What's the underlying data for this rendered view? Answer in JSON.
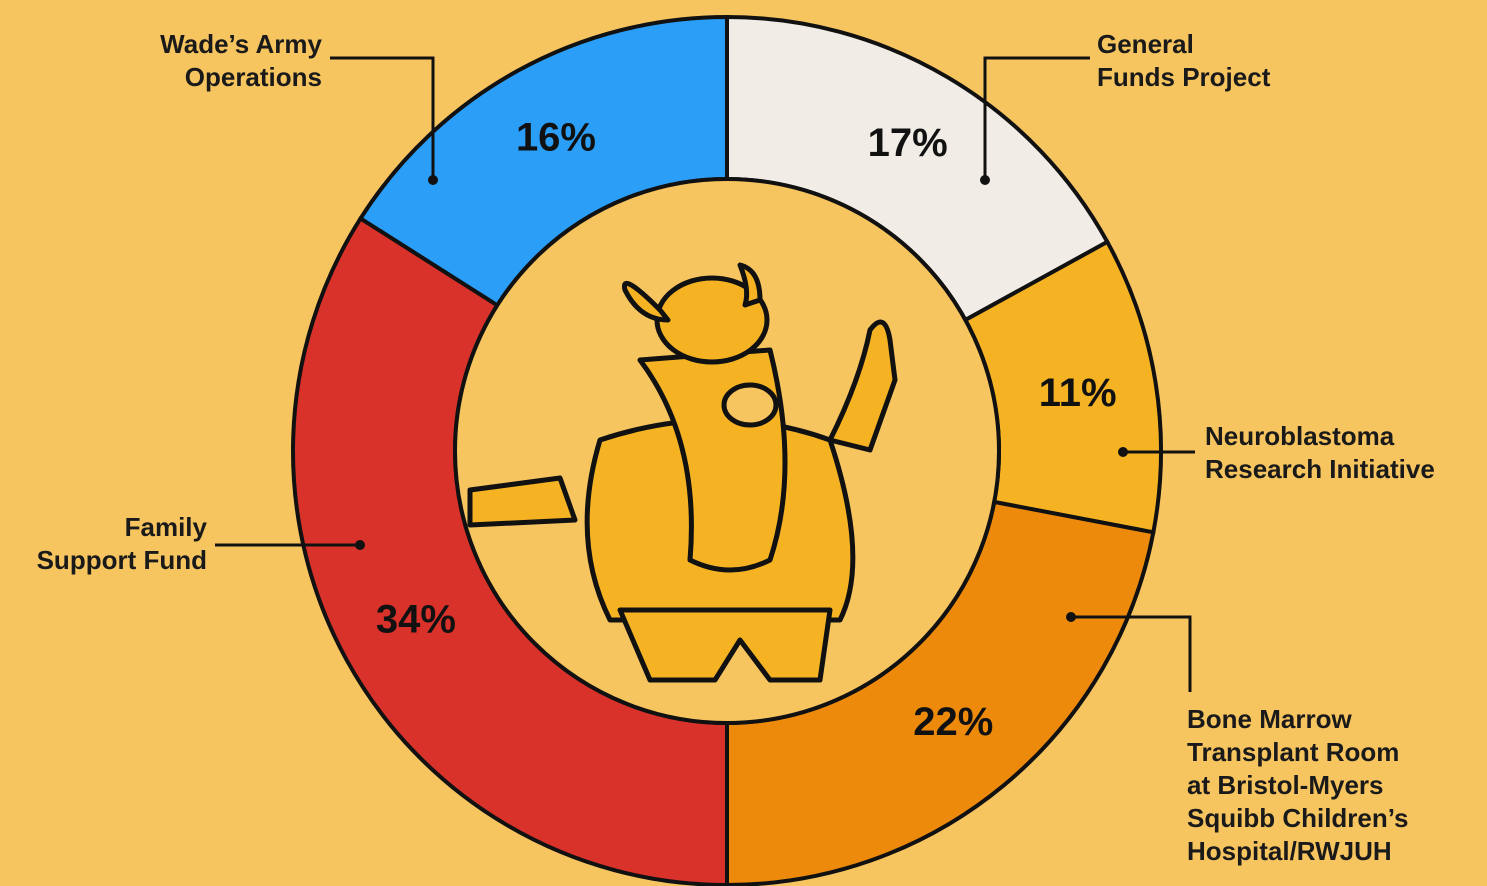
{
  "chart_data": {
    "type": "donut",
    "categories": [
      "General\nFunds Project",
      "Neuroblastoma\nResearch Initiative",
      "Bone Marrow\nTransplant Room\nat Bristol-Myers\nSquibb Children’s\nHospital/RWJUH",
      "Family\nSupport Fund",
      "Wade’s Army\nOperations"
    ],
    "values": [
      17,
      11,
      22,
      34,
      16
    ],
    "value_labels": [
      "17%",
      "11%",
      "22%",
      "34%",
      "16%"
    ],
    "colors": [
      "#f1ede6",
      "#f5b324",
      "#ee8a0b",
      "#d9322b",
      "#2b9ef8"
    ]
  }
}
